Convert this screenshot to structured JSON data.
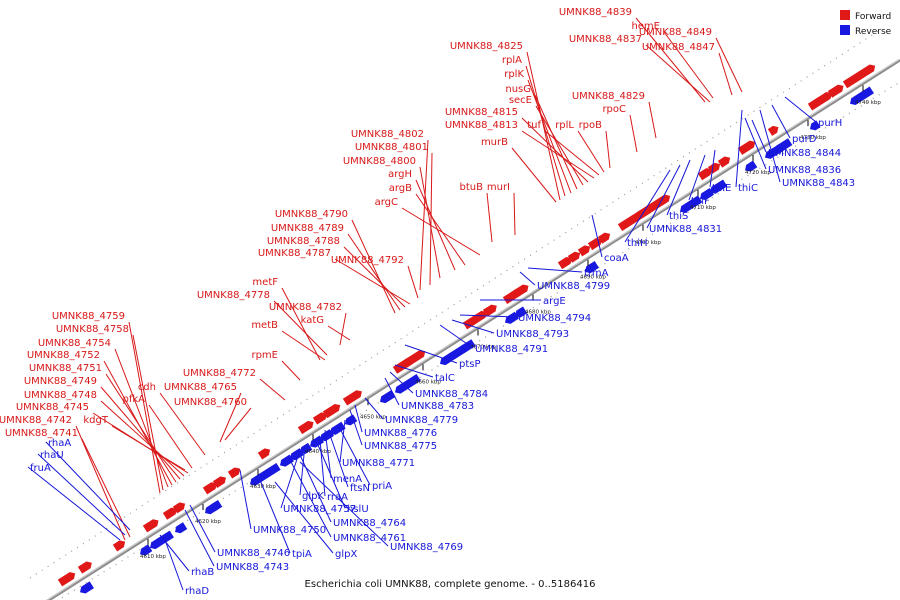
{
  "caption": "Escherichia coli UMNK88, complete genome. - 0..5186416",
  "legend": {
    "forward": "Forward",
    "reverse": "Reverse"
  },
  "colors": {
    "forward": "#e01818",
    "reverse": "#1818e0",
    "forward_label": "#d81818",
    "reverse_label": "#1616d8",
    "backbone": "#8a8a8a"
  },
  "ticks": [
    "4610 kbp",
    "4620 kbp",
    "4630 kbp",
    "4640 kbp",
    "4650 kbp",
    "4660 kbp",
    "4670 kbp",
    "4680 kbp",
    "4690 kbp",
    "4700 kbp",
    "4710 kbp",
    "4720 kbp",
    "4730 kbp",
    "4740 kbp"
  ],
  "forward_labels": [
    "UMNK88_4839",
    "hemE",
    "UMNK88_4849",
    "UMNK88_4837",
    "UMNK88_4847",
    "UMNK88_4825",
    "rplA",
    "rplK",
    "nusG",
    "secE",
    "UMNK88_4815",
    "UMNK88_4813",
    "tuf",
    "rplL",
    "rpoB",
    "UMNK88_4829",
    "rpoC",
    "murB",
    "UMNK88_4802",
    "UMNK88_4801",
    "UMNK88_4800",
    "argH",
    "argB",
    "argC",
    "btuB",
    "murI",
    "UMNK88_4790",
    "UMNK88_4789",
    "UMNK88_4788",
    "UMNK88_4787",
    "UMNK88_4792",
    "metF",
    "UMNK88_4778",
    "UMNK88_4782",
    "katG",
    "metB",
    "UMNK88_4759",
    "UMNK88_4758",
    "UMNK88_4754",
    "UMNK88_4752",
    "UMNK88_4751",
    "UMNK88_4749",
    "UMNK88_4748",
    "UMNK88_4745",
    "UMNK88_4742",
    "UMNK88_4741",
    "rpmE",
    "UMNK88_4772",
    "cdh",
    "UMNK88_4765",
    "pfkA",
    "UMNK88_4760",
    "kdgT"
  ],
  "reverse_labels": [
    "purH",
    "purD",
    "UMNK88_4844",
    "thiC",
    "UMNK88_4836",
    "UMNK88_4843",
    "thiE",
    "thiF",
    "thiS",
    "UMNK88_4831",
    "thiH",
    "coaA",
    "trmA",
    "UMNK88_4799",
    "argE",
    "UMNK88_4794",
    "UMNK88_4793",
    "UMNK88_4791",
    "ptsP",
    "talC",
    "UMNK88_4784",
    "UMNK88_4783",
    "UMNK88_4779",
    "UMNK88_4776",
    "UMNK88_4775",
    "UMNK88_4771",
    "priA",
    "menA",
    "ftsN",
    "rraA",
    "hslU",
    "glpK",
    "UMNK88_4757",
    "UMNK88_4764",
    "UMNK88_4761",
    "UMNK88_4769",
    "UMNK88_4750",
    "tpiA",
    "glpX",
    "UMNK88_4746",
    "UMNK88_4743",
    "rhaA",
    "rhaU",
    "fruA",
    "rhaB",
    "rhaD"
  ]
}
